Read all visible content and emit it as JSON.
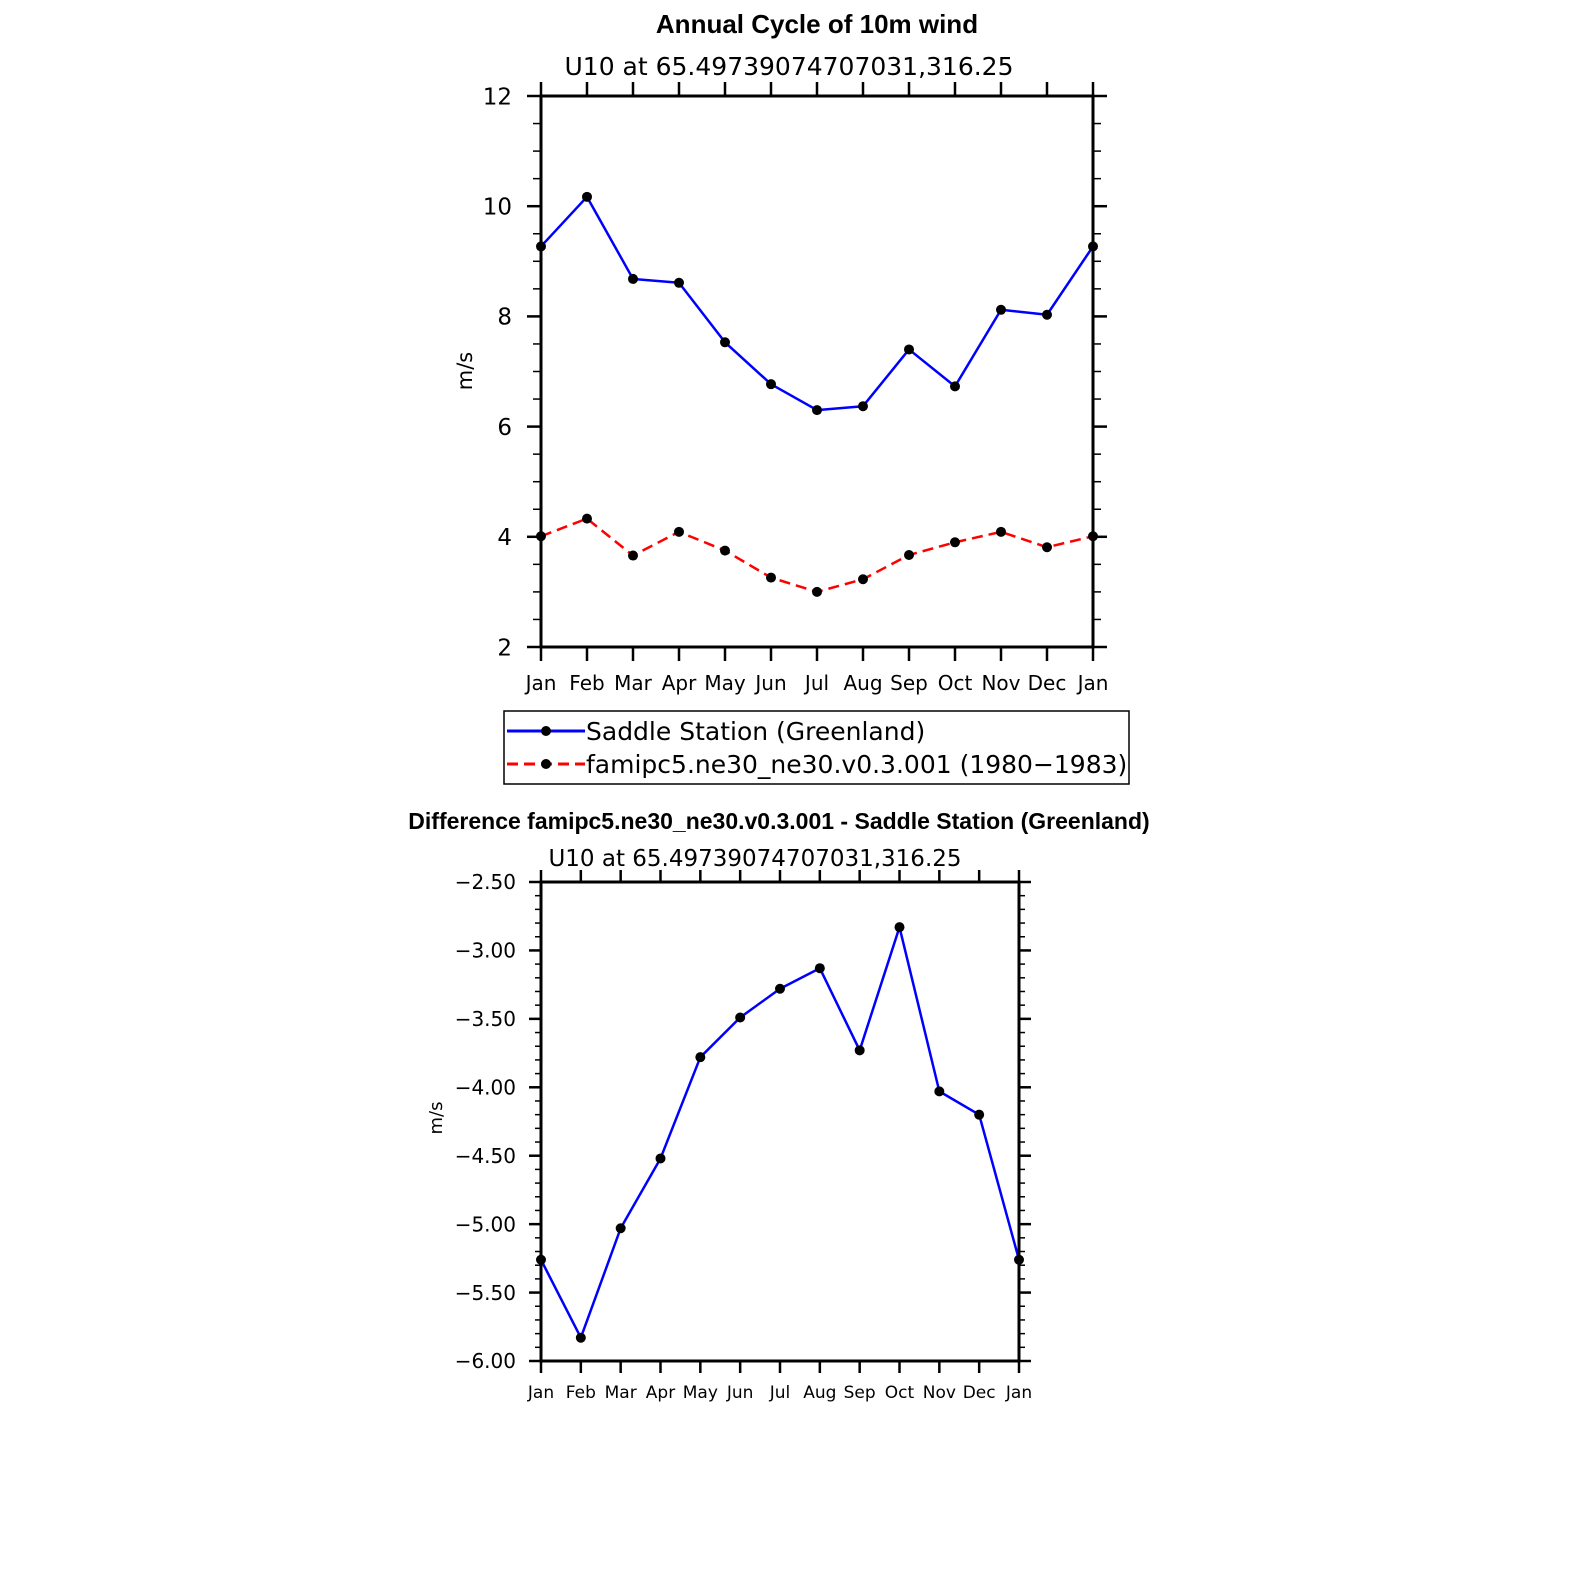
{
  "chart_data": [
    {
      "type": "line",
      "title": "Annual Cycle of 10m wind",
      "subtitle": "U10 at 65.49739074707031,316.25",
      "ylabel": "m/s",
      "xlabel": "",
      "categories": [
        "Jan",
        "Feb",
        "Mar",
        "Apr",
        "May",
        "Jun",
        "Jul",
        "Aug",
        "Sep",
        "Oct",
        "Nov",
        "Dec",
        "Jan"
      ],
      "ylim": [
        2,
        12
      ],
      "yticks": [
        "2",
        "4",
        "6",
        "8",
        "10",
        "12"
      ],
      "ytick_values": [
        2,
        4,
        6,
        8,
        10,
        12
      ],
      "grid": false,
      "legend_position": "bottom",
      "series": [
        {
          "name": "Saddle Station (Greenland)",
          "color": "#0000ff",
          "dash": "solid",
          "marker": "filled-circle",
          "values": [
            9.27,
            10.17,
            8.68,
            8.61,
            7.53,
            6.77,
            6.3,
            6.37,
            7.4,
            6.73,
            8.12,
            8.03,
            9.27
          ]
        },
        {
          "name": "famipc5.ne30_ne30.v0.3.001 (1980−1983)",
          "color": "#ff0000",
          "dash": "dashed",
          "marker": "filled-circle",
          "values": [
            4.01,
            4.33,
            3.66,
            4.09,
            3.75,
            3.26,
            3.0,
            3.23,
            3.67,
            3.9,
            4.09,
            3.81,
            4.01
          ]
        }
      ]
    },
    {
      "type": "line",
      "title": "Difference famipc5.ne30_ne30.v0.3.001 - Saddle Station (Greenland)",
      "subtitle": "U10 at 65.49739074707031,316.25",
      "ylabel": "m/s",
      "xlabel": "",
      "categories": [
        "Jan",
        "Feb",
        "Mar",
        "Apr",
        "May",
        "Jun",
        "Jul",
        "Aug",
        "Sep",
        "Oct",
        "Nov",
        "Dec",
        "Jan"
      ],
      "ylim": [
        -6.0,
        -2.5
      ],
      "yticks": [
        "−2.50",
        "−3.00",
        "−3.50",
        "−4.00",
        "−4.50",
        "−5.00",
        "−5.50",
        "−6.00"
      ],
      "ytick_values": [
        -2.5,
        -3.0,
        -3.5,
        -4.0,
        -4.5,
        -5.0,
        -5.5,
        -6.0
      ],
      "grid": false,
      "series": [
        {
          "color": "#0000ff",
          "dash": "solid",
          "marker": "filled-circle",
          "values": [
            -5.26,
            -5.83,
            -5.03,
            -4.52,
            -3.78,
            -3.49,
            -3.28,
            -3.13,
            -3.73,
            -2.83,
            -4.03,
            -4.2,
            -5.26
          ]
        }
      ]
    }
  ]
}
